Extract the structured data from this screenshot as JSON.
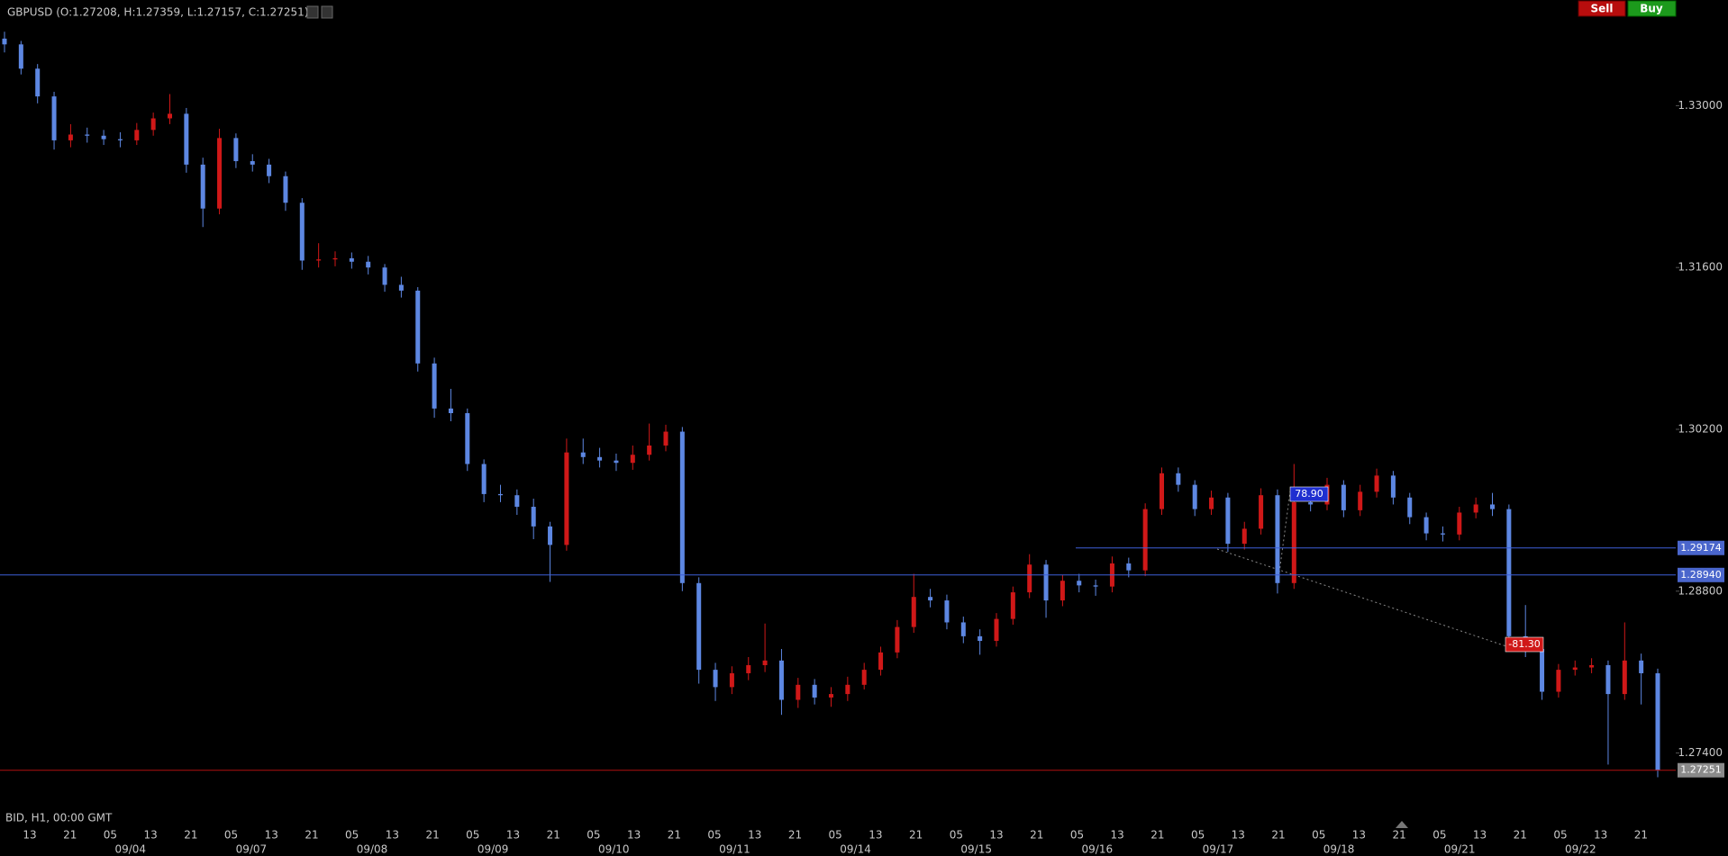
{
  "chart_data": {
    "type": "candlestick",
    "title": "GBPUSD (O:1.27208, H:1.27359, L:1.27157, C:1.27251)",
    "subtitle": "BID, H1, 00:00 GMT",
    "up_color": "#d01818",
    "down_color": "#5d87e2",
    "ylim": [
      1.26914,
      1.33914
    ],
    "yticks": [
      {
        "value": 1.33,
        "label": "1.33000"
      },
      {
        "value": 1.316,
        "label": "1.31600"
      },
      {
        "value": 1.302,
        "label": "1.30200"
      },
      {
        "value": 1.288,
        "label": "1.28800"
      },
      {
        "value": 1.274,
        "label": "1.27400"
      }
    ],
    "hour_labels": [
      "13",
      "21",
      "05",
      "13",
      "21",
      "05",
      "13",
      "21",
      "05",
      "13",
      "21",
      "05",
      "13",
      "21",
      "05",
      "13",
      "21",
      "05",
      "13",
      "21",
      "05",
      "13",
      "21",
      "05",
      "13",
      "21",
      "05",
      "13",
      "21",
      "05",
      "13",
      "21",
      "05",
      "13",
      "21",
      "05",
      "13",
      "21",
      "05",
      "13",
      "21"
    ],
    "date_labels": [
      "09/04",
      "09/07",
      "09/08",
      "09/09",
      "09/10",
      "09/11",
      "09/14",
      "09/15",
      "09/16",
      "09/17",
      "09/18",
      "09/21",
      "09/22"
    ],
    "lines": [
      {
        "value": 1.29174,
        "label": "1.29174",
        "color": "#3d5fd8",
        "label_color": "#4a66cc"
      },
      {
        "value": 1.2894,
        "label": "1.28940",
        "color": "#3d5fd8",
        "label_color": "#4a66cc"
      },
      {
        "value": 1.27251,
        "label": "1.27251",
        "color": "#b01010",
        "label_color": "#8a8a8a"
      }
    ],
    "annotations": [
      {
        "text": "78.90",
        "color": "#1f2fd0"
      },
      {
        "text": "-81.30",
        "color": "#d01818"
      }
    ],
    "ohlc": [
      [
        1.3358,
        1.3364,
        1.3346,
        1.3353
      ],
      [
        1.3353,
        1.3356,
        1.3327,
        1.3332
      ],
      [
        1.3332,
        1.3336,
        1.3302,
        1.3308
      ],
      [
        1.3308,
        1.3312,
        1.3262,
        1.327
      ],
      [
        1.327,
        1.3284,
        1.3264,
        1.3275
      ],
      [
        1.3275,
        1.3281,
        1.3268,
        1.3274
      ],
      [
        1.3274,
        1.3279,
        1.3266,
        1.3271
      ],
      [
        1.3271,
        1.3277,
        1.3264,
        1.327
      ],
      [
        1.327,
        1.3285,
        1.3266,
        1.3279
      ],
      [
        1.3279,
        1.3294,
        1.3274,
        1.3289
      ],
      [
        1.3289,
        1.331,
        1.3284,
        1.3293
      ],
      [
        1.3293,
        1.3298,
        1.3242,
        1.3249
      ],
      [
        1.3249,
        1.3255,
        1.3195,
        1.3211
      ],
      [
        1.3211,
        1.328,
        1.3206,
        1.3272
      ],
      [
        1.3272,
        1.3276,
        1.3246,
        1.3252
      ],
      [
        1.3252,
        1.3258,
        1.3243,
        1.3249
      ],
      [
        1.3249,
        1.3254,
        1.3233,
        1.3239
      ],
      [
        1.3239,
        1.3243,
        1.3209,
        1.3216
      ],
      [
        1.3216,
        1.322,
        1.3158,
        1.3166
      ],
      [
        1.3166,
        1.3181,
        1.316,
        1.3167
      ],
      [
        1.3167,
        1.3174,
        1.3161,
        1.3168
      ],
      [
        1.3168,
        1.3173,
        1.3159,
        1.3165
      ],
      [
        1.3165,
        1.317,
        1.3154,
        1.316
      ],
      [
        1.316,
        1.3163,
        1.3139,
        1.3145
      ],
      [
        1.3145,
        1.3152,
        1.3134,
        1.314
      ],
      [
        1.314,
        1.3143,
        1.307,
        1.3077
      ],
      [
        1.3077,
        1.3082,
        1.303,
        1.3038
      ],
      [
        1.3038,
        1.3055,
        1.3027,
        1.3034
      ],
      [
        1.3034,
        1.3038,
        1.2984,
        1.299
      ],
      [
        1.299,
        1.2994,
        1.2957,
        1.2964
      ],
      [
        1.2964,
        1.2972,
        1.2957,
        1.2963
      ],
      [
        1.2963,
        1.2968,
        1.2946,
        1.2953
      ],
      [
        1.2953,
        1.296,
        1.2925,
        1.2936
      ],
      [
        1.2936,
        1.294,
        1.2888,
        1.292
      ],
      [
        1.292,
        1.3012,
        1.2915,
        1.3
      ],
      [
        1.3,
        1.3012,
        1.299,
        1.2996
      ],
      [
        1.2996,
        1.3004,
        1.2987,
        1.2993
      ],
      [
        1.2993,
        1.2999,
        1.2984,
        1.2991
      ],
      [
        1.2991,
        1.3006,
        1.2985,
        1.2998
      ],
      [
        1.2998,
        1.3025,
        1.2993,
        1.3006
      ],
      [
        1.3006,
        1.3024,
        1.3001,
        1.3018
      ],
      [
        1.3018,
        1.3022,
        1.288,
        1.2887
      ],
      [
        1.2887,
        1.2892,
        1.28,
        1.2812
      ],
      [
        1.2812,
        1.2818,
        1.2785,
        1.2797
      ],
      [
        1.2797,
        1.2815,
        1.2791,
        1.2809
      ],
      [
        1.2809,
        1.2823,
        1.2803,
        1.2816
      ],
      [
        1.2816,
        1.2852,
        1.281,
        1.282
      ],
      [
        1.282,
        1.283,
        1.2773,
        1.2786
      ],
      [
        1.2786,
        1.2805,
        1.2779,
        1.2799
      ],
      [
        1.2799,
        1.2804,
        1.2782,
        1.2788
      ],
      [
        1.2788,
        1.2797,
        1.278,
        1.2791
      ],
      [
        1.2791,
        1.2806,
        1.2785,
        1.2799
      ],
      [
        1.2799,
        1.2818,
        1.2795,
        1.2812
      ],
      [
        1.2812,
        1.2832,
        1.2807,
        1.2827
      ],
      [
        1.2827,
        1.2855,
        1.2822,
        1.2849
      ],
      [
        1.2849,
        1.2895,
        1.2844,
        1.2875
      ],
      [
        1.2875,
        1.2882,
        1.2866,
        1.2872
      ],
      [
        1.2872,
        1.2877,
        1.2847,
        1.2853
      ],
      [
        1.2853,
        1.2858,
        1.2835,
        1.2841
      ],
      [
        1.2841,
        1.2847,
        1.2825,
        1.2837
      ],
      [
        1.2837,
        1.2861,
        1.2832,
        1.2856
      ],
      [
        1.2856,
        1.2884,
        1.2851,
        1.2879
      ],
      [
        1.2879,
        1.2912,
        1.2874,
        1.2903
      ],
      [
        1.2903,
        1.2907,
        1.2857,
        1.2872
      ],
      [
        1.2872,
        1.2894,
        1.2867,
        1.2889
      ],
      [
        1.2889,
        1.2895,
        1.2879,
        1.2885
      ],
      [
        1.2885,
        1.289,
        1.2876,
        1.2884
      ],
      [
        1.2884,
        1.291,
        1.2879,
        1.2904
      ],
      [
        1.2904,
        1.2909,
        1.2892,
        1.2898
      ],
      [
        1.2898,
        1.2956,
        1.2893,
        1.2951
      ],
      [
        1.2951,
        1.2987,
        1.2946,
        1.2982
      ],
      [
        1.2982,
        1.2987,
        1.2966,
        1.2972
      ],
      [
        1.2972,
        1.2976,
        1.2945,
        1.2951
      ],
      [
        1.2951,
        1.2967,
        1.2946,
        1.2961
      ],
      [
        1.2961,
        1.2965,
        1.2914,
        1.2921
      ],
      [
        1.2921,
        1.294,
        1.2916,
        1.2934
      ],
      [
        1.2934,
        1.2969,
        1.2929,
        1.2963
      ],
      [
        1.2963,
        1.2968,
        1.2878,
        1.2887
      ],
      [
        1.2887,
        1.299,
        1.2882,
        1.2957
      ],
      [
        1.2957,
        1.2963,
        1.2949,
        1.2955
      ],
      [
        1.2955,
        1.2978,
        1.295,
        1.2972
      ],
      [
        1.2972,
        1.2976,
        1.2944,
        1.295
      ],
      [
        1.295,
        1.2972,
        1.2945,
        1.2966
      ],
      [
        1.2966,
        1.2986,
        1.2961,
        1.298
      ],
      [
        1.298,
        1.2984,
        1.2955,
        1.2961
      ],
      [
        1.2961,
        1.2965,
        1.2938,
        1.2944
      ],
      [
        1.2944,
        1.2948,
        1.2924,
        1.293
      ],
      [
        1.293,
        1.2936,
        1.2923,
        1.2929
      ],
      [
        1.2929,
        1.2953,
        1.2924,
        1.2948
      ],
      [
        1.2948,
        1.2961,
        1.2943,
        1.2955
      ],
      [
        1.2955,
        1.2965,
        1.2945,
        1.2951
      ],
      [
        1.2951,
        1.2955,
        1.2834,
        1.2841
      ],
      [
        1.2841,
        1.2868,
        1.2823,
        1.283
      ],
      [
        1.283,
        1.2834,
        1.2786,
        1.2793
      ],
      [
        1.2793,
        1.2817,
        1.2788,
        1.2812
      ],
      [
        1.2812,
        1.282,
        1.2807,
        1.2814
      ],
      [
        1.2814,
        1.2822,
        1.2809,
        1.2816
      ],
      [
        1.2816,
        1.282,
        1.273,
        1.2791
      ],
      [
        1.2791,
        1.2853,
        1.2786,
        1.282
      ],
      [
        1.282,
        1.2826,
        1.2782,
        1.2809
      ],
      [
        1.2809,
        1.2813,
        1.2719,
        1.2725
      ]
    ]
  },
  "buttons": [
    "Sell",
    "Buy"
  ]
}
